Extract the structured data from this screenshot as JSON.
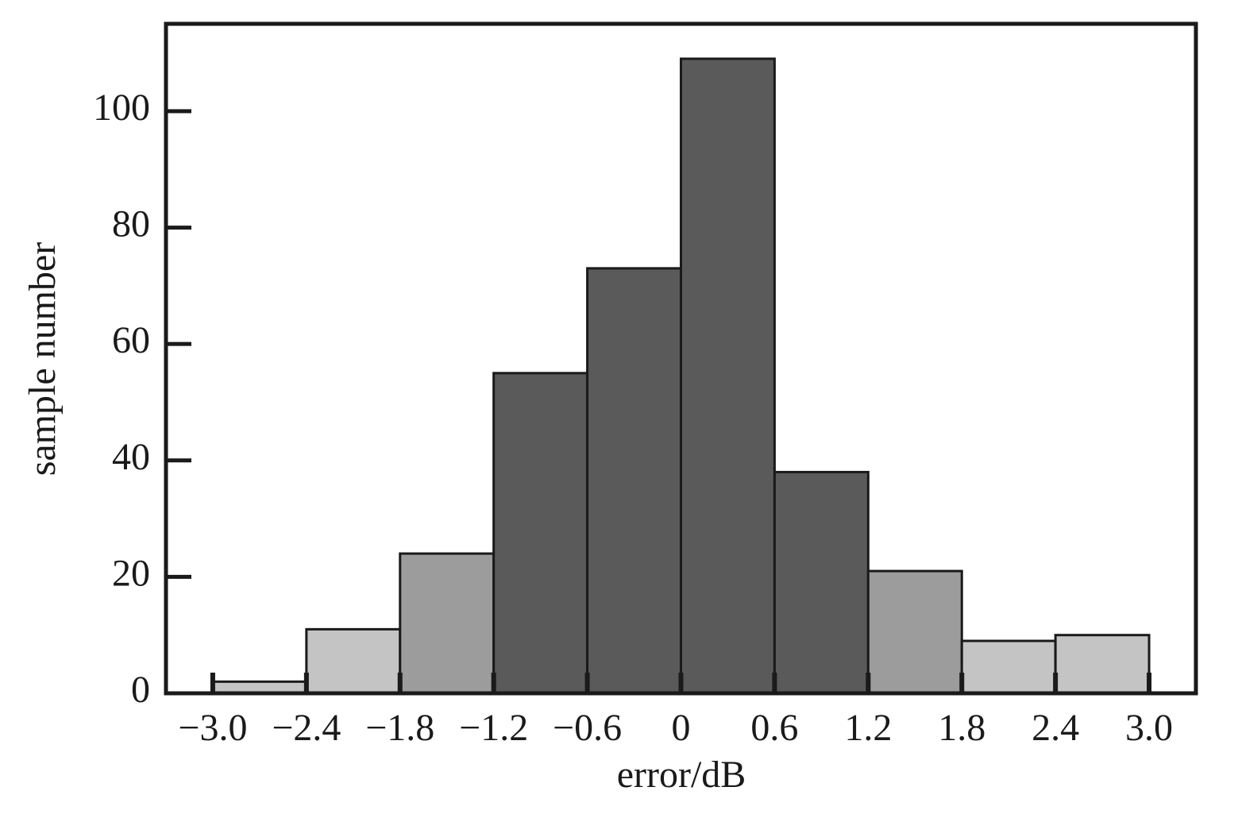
{
  "chart_data": {
    "type": "histogram",
    "xlabel": "error/dB",
    "ylabel": "sample number",
    "bins": [
      -3.0,
      -2.4,
      -1.8,
      -1.2,
      -0.6,
      0,
      0.6,
      1.2,
      1.8,
      2.4,
      3.0
    ],
    "counts": [
      2,
      11,
      24,
      55,
      73,
      109,
      38,
      21,
      9,
      10
    ],
    "colors": [
      "#c4c4c4",
      "#c4c4c4",
      "#9c9c9c",
      "#5a5a5a",
      "#5a5a5a",
      "#5a5a5a",
      "#5a5a5a",
      "#9c9c9c",
      "#c4c4c4",
      "#c4c4c4"
    ],
    "xlim": [
      -3.3,
      3.3
    ],
    "ylim": [
      0,
      115
    ],
    "xticks": [
      {
        "value": -3.0,
        "label": "−3.0"
      },
      {
        "value": -2.4,
        "label": "−2.4"
      },
      {
        "value": -1.8,
        "label": "−1.8"
      },
      {
        "value": -1.2,
        "label": "−1.2"
      },
      {
        "value": -0.6,
        "label": "−0.6"
      },
      0,
      0.6,
      1.2,
      1.8,
      2.4,
      {
        "value": 3.0,
        "label": "3.0"
      }
    ],
    "yticks": [
      0,
      20,
      40,
      60,
      80,
      100
    ],
    "grid": false
  }
}
